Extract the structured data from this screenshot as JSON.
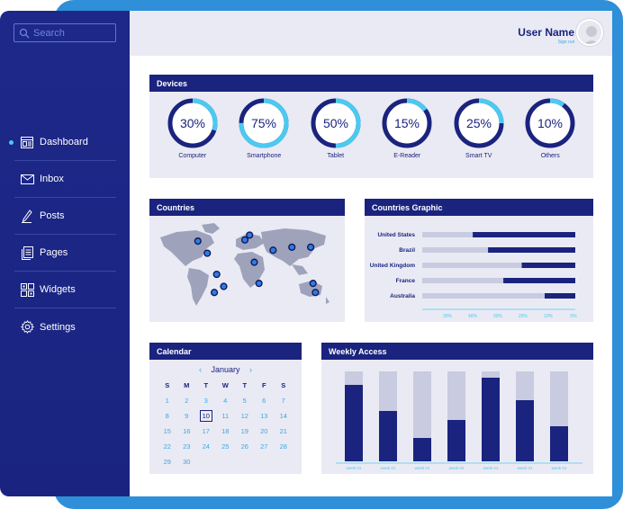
{
  "sidebar": {
    "search_placeholder": "Search",
    "items": [
      {
        "label": "Dashboard",
        "icon": "dashboard-icon",
        "active": true
      },
      {
        "label": "Inbox",
        "icon": "envelope-icon"
      },
      {
        "label": "Posts",
        "icon": "pen-icon"
      },
      {
        "label": "Pages",
        "icon": "pages-icon"
      },
      {
        "label": "Widgets",
        "icon": "widgets-icon"
      },
      {
        "label": "Settings",
        "icon": "gear-icon"
      }
    ]
  },
  "header": {
    "user_name": "User Name",
    "sign_out": "Sign out"
  },
  "devices": {
    "title": "Devices",
    "items": [
      {
        "label": "Computer",
        "value": "30%",
        "fraction": 0.3
      },
      {
        "label": "Smartphone",
        "value": "75%",
        "fraction": 0.75
      },
      {
        "label": "Tablet",
        "value": "50%",
        "fraction": 0.5
      },
      {
        "label": "E-Reader",
        "value": "15%",
        "fraction": 0.15
      },
      {
        "label": "Smart TV",
        "value": "25%",
        "fraction": 0.25
      },
      {
        "label": "Others",
        "value": "10%",
        "fraction": 0.1
      }
    ]
  },
  "countries": {
    "title": "Countries"
  },
  "countries_graphic": {
    "title": "Countries Graphic",
    "ticks": [
      "30%",
      "40%",
      "30%",
      "20%",
      "10%",
      "0%"
    ]
  },
  "calendar": {
    "title": "Calendar",
    "month": "January",
    "prev": "‹",
    "next": "›",
    "weekdays": [
      "S",
      "M",
      "T",
      "W",
      "T",
      "F",
      "S"
    ],
    "today": "10",
    "days": [
      "1",
      "2",
      "3",
      "4",
      "5",
      "6",
      "7",
      "8",
      "9",
      "10",
      "11",
      "12",
      "13",
      "14",
      "15",
      "16",
      "17",
      "18",
      "19",
      "20",
      "21",
      "22",
      "23",
      "24",
      "25",
      "26",
      "27",
      "28",
      "29",
      "30"
    ]
  },
  "weekly_access": {
    "title": "Weekly Access",
    "week_label": "week 01"
  },
  "chart_data": [
    {
      "type": "bar",
      "orientation": "horizontal",
      "categories": [
        "United States",
        "Brazil",
        "United Kingdom",
        "France",
        "Australia"
      ],
      "values": [
        0.67,
        0.57,
        0.35,
        0.47,
        0.2
      ],
      "x_ticks": [
        "30%",
        "40%",
        "30%",
        "20%",
        "10%",
        "0%"
      ],
      "colors": {
        "bar": "#1a237e",
        "track": "#c9cbe0"
      }
    },
    {
      "type": "bar",
      "orientation": "vertical",
      "stacked": true,
      "categories": [
        "week 01",
        "week 01",
        "week 01",
        "week 01",
        "week 01",
        "week 01",
        "week 01"
      ],
      "values": [
        0.85,
        0.56,
        0.26,
        0.46,
        0.93,
        0.68,
        0.39
      ],
      "colors": {
        "bar": "#1a237e",
        "track": "#c9cbe0"
      }
    }
  ],
  "map": {
    "markers": [
      {
        "lon": -100,
        "lat": 50
      },
      {
        "lon": -80,
        "lat": 30
      },
      {
        "lon": -60,
        "lat": -5
      },
      {
        "lon": -65,
        "lat": -35
      },
      {
        "lon": -45,
        "lat": -25
      },
      {
        "lon": 0,
        "lat": 52
      },
      {
        "lon": 10,
        "lat": 60
      },
      {
        "lon": 20,
        "lat": 15
      },
      {
        "lon": 30,
        "lat": -20
      },
      {
        "lon": 60,
        "lat": 35
      },
      {
        "lon": 100,
        "lat": 40
      },
      {
        "lon": 140,
        "lat": 40
      },
      {
        "lon": 145,
        "lat": -20
      },
      {
        "lon": 150,
        "lat": -35
      }
    ]
  },
  "colors": {
    "navy": "#1a237e",
    "accent": "#4cc9f0",
    "frame": "#2f8fd8",
    "panel": "#eaeaf4"
  }
}
